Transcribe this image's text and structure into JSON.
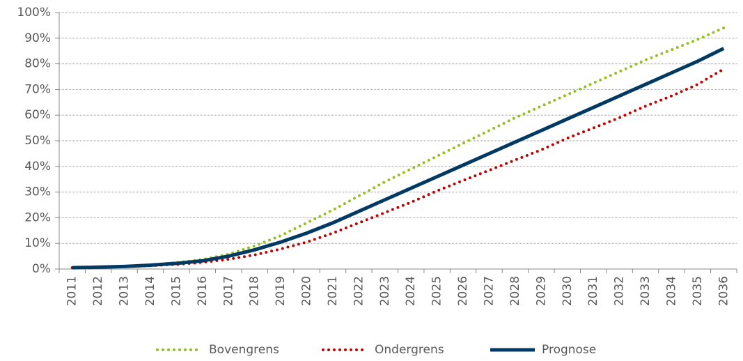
{
  "chart_data": {
    "type": "line",
    "categories": [
      "2011",
      "2012",
      "2013",
      "2014",
      "2015",
      "2016",
      "2017",
      "2018",
      "2019",
      "2020",
      "2021",
      "2022",
      "2023",
      "2024",
      "2025",
      "2026",
      "2027",
      "2028",
      "2029",
      "2030",
      "2031",
      "2032",
      "2033",
      "2034",
      "2035",
      "2036"
    ],
    "series": [
      {
        "name": "Bovengrens",
        "color": "#92c01f",
        "style": "dotted",
        "values": [
          0.5,
          0.7,
          1,
          1.6,
          2.5,
          3.7,
          5.8,
          9,
          13,
          18,
          23,
          28.5,
          34,
          39,
          44,
          49,
          54,
          59,
          63.5,
          68,
          72.5,
          77,
          81.5,
          85.5,
          89.5,
          94
        ]
      },
      {
        "name": "Ondergrens",
        "color": "#c00000",
        "style": "dotted",
        "values": [
          0.5,
          0.6,
          0.9,
          1.3,
          1.8,
          2.6,
          3.8,
          5.5,
          7.8,
          10.5,
          14,
          18,
          22,
          26,
          30.5,
          34.5,
          38.5,
          42.5,
          46.5,
          51,
          55,
          59,
          63.5,
          67.5,
          72,
          78
        ]
      },
      {
        "name": "Prognose",
        "color": "#003a63",
        "style": "solid",
        "values": [
          0.5,
          0.7,
          1,
          1.5,
          2.2,
          3.2,
          5,
          7.5,
          10.5,
          14,
          18,
          22.5,
          27,
          31.5,
          36,
          40.5,
          45,
          49.5,
          54,
          58.5,
          63,
          67.5,
          72,
          76.5,
          81,
          86
        ]
      }
    ],
    "ylim": [
      0,
      100
    ],
    "yticks": [
      {
        "value": 0,
        "label": "0%"
      },
      {
        "value": 10,
        "label": "10%"
      },
      {
        "value": 20,
        "label": "20%"
      },
      {
        "value": 30,
        "label": "30%"
      },
      {
        "value": 40,
        "label": "40%"
      },
      {
        "value": 50,
        "label": "50%"
      },
      {
        "value": 60,
        "label": "60%"
      },
      {
        "value": 70,
        "label": "70%"
      },
      {
        "value": 80,
        "label": "80%"
      },
      {
        "value": 90,
        "label": "90%"
      },
      {
        "value": 100,
        "label": "100%"
      }
    ],
    "grid": true,
    "legend": "bottom"
  }
}
